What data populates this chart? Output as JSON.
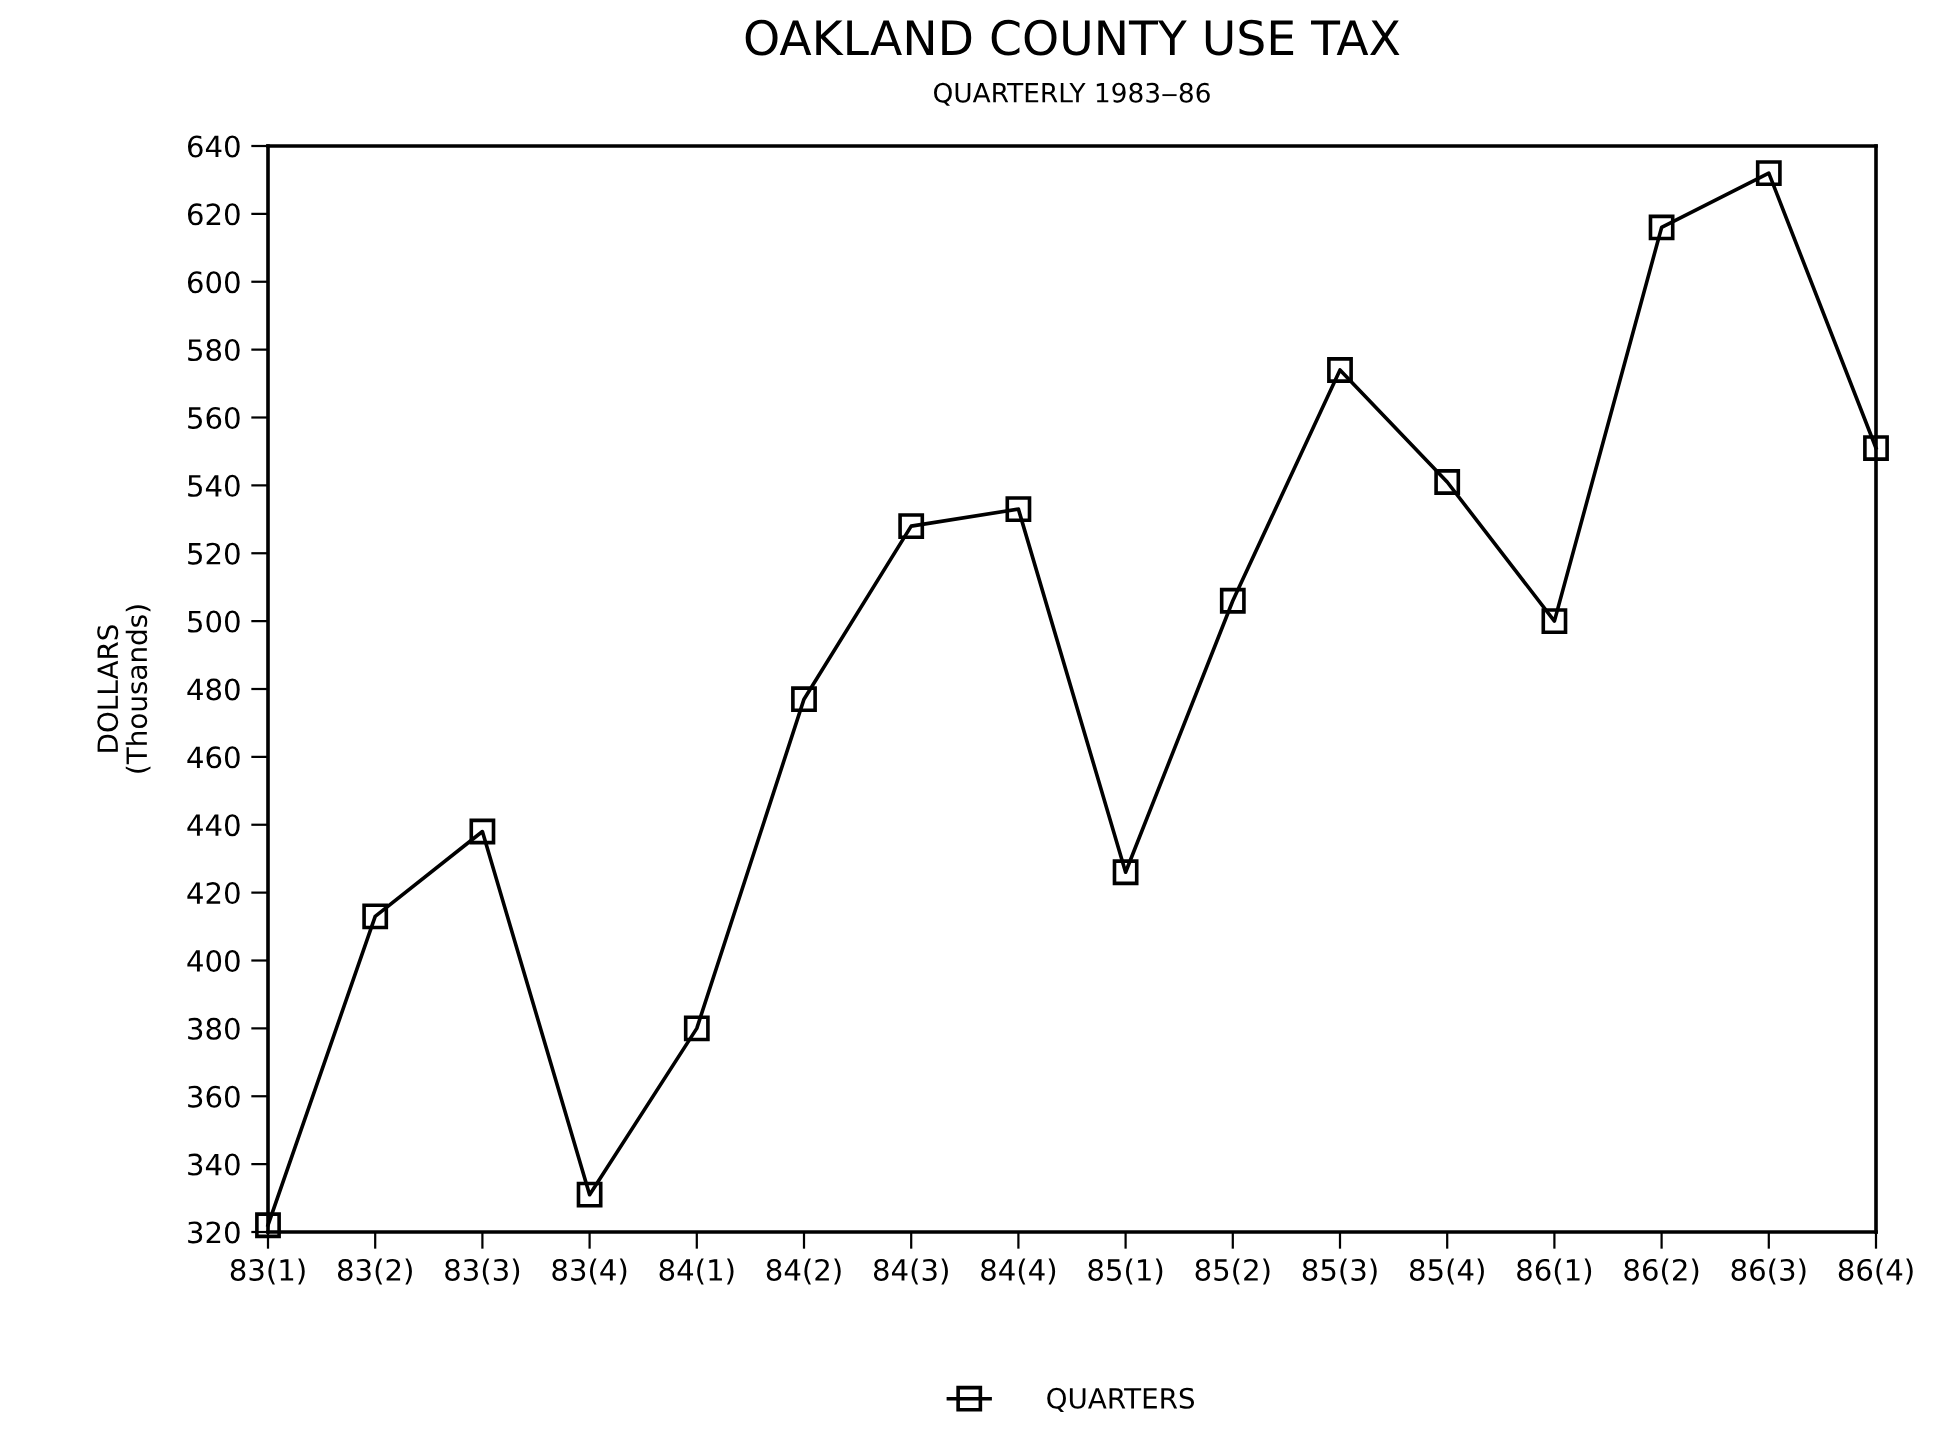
{
  "chart_data": {
    "type": "line",
    "title": "OAKLAND COUNTY USE TAX",
    "subtitle": "QUARTERLY 1983‒86",
    "ylabel": "DOLLARS\n(Thousands)",
    "categories": [
      "83(1)",
      "83(2)",
      "83(3)",
      "83(4)",
      "84(1)",
      "84(2)",
      "84(3)",
      "84(4)",
      "85(1)",
      "85(2)",
      "85(3)",
      "85(4)",
      "86(1)",
      "86(2)",
      "86(3)",
      "86(4)"
    ],
    "series": [
      {
        "name": "QUARTERS",
        "color": "#000000",
        "values": [
          322,
          413,
          438,
          331,
          380,
          477,
          528,
          533,
          426,
          506,
          574,
          541,
          500,
          616,
          632,
          551
        ]
      }
    ],
    "ylim": [
      320,
      640
    ],
    "yticks": [
      320,
      340,
      360,
      380,
      400,
      420,
      440,
      460,
      480,
      500,
      520,
      540,
      560,
      580,
      600,
      620,
      640
    ],
    "marker": "square",
    "line_style": "solid",
    "grid": false,
    "legend": "bottom"
  }
}
